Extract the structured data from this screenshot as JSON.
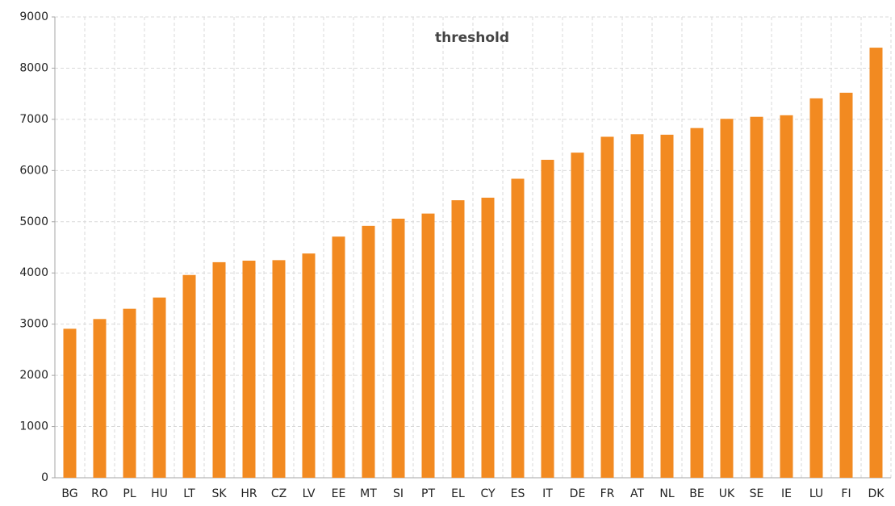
{
  "chart_data": {
    "type": "bar",
    "title": "threshold",
    "categories": [
      "BG",
      "RO",
      "PL",
      "HU",
      "LT",
      "SK",
      "HR",
      "CZ",
      "LV",
      "EE",
      "MT",
      "SI",
      "PT",
      "EL",
      "CY",
      "ES",
      "IT",
      "DE",
      "FR",
      "AT",
      "NL",
      "BE",
      "UK",
      "SE",
      "IE",
      "LU",
      "FI",
      "DK"
    ],
    "values": [
      2910,
      3100,
      3300,
      3520,
      3960,
      4210,
      4240,
      4250,
      4380,
      4710,
      4920,
      5060,
      5160,
      5420,
      5470,
      5840,
      6210,
      6350,
      6660,
      6710,
      6700,
      6830,
      7010,
      7050,
      7080,
      7410,
      7520,
      8400
    ],
    "color": "#f28a21",
    "ylim": [
      0,
      9000
    ],
    "yticks": [
      0,
      1000,
      2000,
      3000,
      4000,
      5000,
      6000,
      7000,
      8000,
      9000
    ],
    "grid": true
  }
}
